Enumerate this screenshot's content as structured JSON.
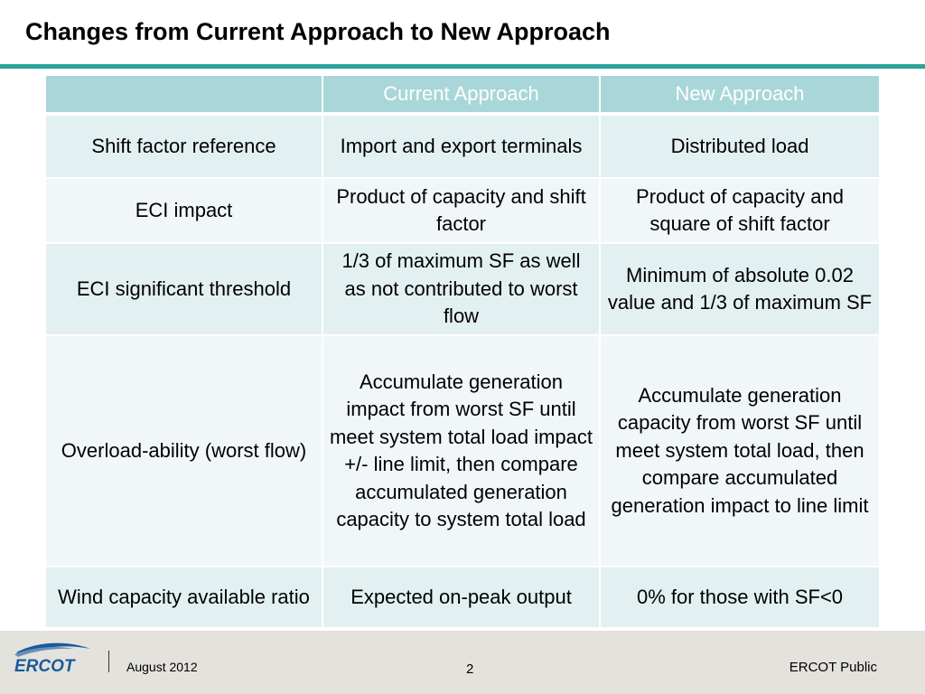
{
  "title": "Changes from Current Approach to New Approach",
  "table": {
    "headers": [
      "",
      "Current Approach",
      "New Approach"
    ],
    "rows": [
      [
        "Shift factor reference",
        "Import and export terminals",
        "Distributed load"
      ],
      [
        "ECI impact",
        "Product of capacity and shift factor",
        "Product of capacity and square of shift factor"
      ],
      [
        "ECI significant threshold",
        "1/3 of maximum SF as well as not contributed to worst flow",
        "Minimum of absolute 0.02 value and 1/3 of maximum SF"
      ],
      [
        "Overload-ability (worst flow)",
        "Accumulate generation impact from worst SF until meet system total load impact +/- line limit, then compare accumulated generation capacity to system total load",
        "Accumulate generation capacity from worst SF until meet system total load, then compare accumulated generation impact to line limit"
      ],
      [
        "Wind capacity available ratio",
        "Expected on-peak output",
        "0% for those with SF<0"
      ]
    ]
  },
  "footer": {
    "logo_text": "ERCOT",
    "date": "August 2012",
    "page_number": "2",
    "classification": "ERCOT Public"
  },
  "colors": {
    "accent_rule": "#2aa39a",
    "header_fill": "#a9d7d9",
    "row_fill_dark": "#e3f0f1",
    "row_fill_light": "#f1f7f8",
    "footer_band": "#e4e2dc",
    "logo_blue": "#1a5a9c"
  }
}
